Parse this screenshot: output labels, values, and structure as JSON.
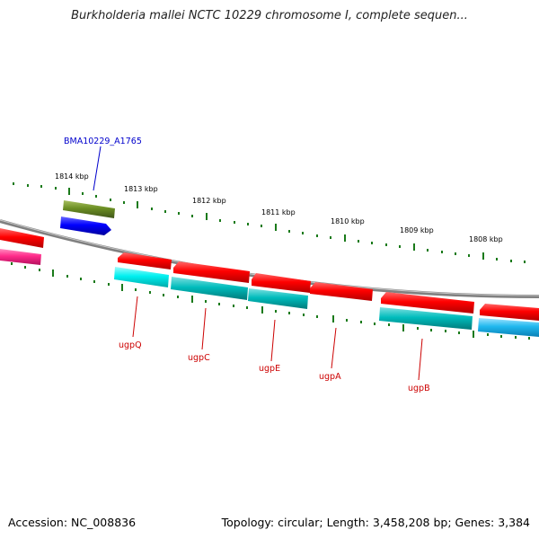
{
  "title": "Burkholderia mallei NCTC 10229 chromosome I, complete sequen...",
  "footer": {
    "accession": "Accession: NC_008836",
    "info": "Topology: circular; Length: 3,458,208 bp; Genes: 3,384"
  },
  "kbp_labels": [
    "1814 kbp",
    "1813 kbp",
    "1812 kbp",
    "1811 kbp",
    "1810 kbp",
    "1809 kbp",
    "1808 kbp"
  ],
  "gene_labels": {
    "top": [
      "BMA10229_A1765"
    ],
    "bottom": [
      "ugpQ",
      "ugpC",
      "ugpE",
      "ugpA",
      "ugpB"
    ]
  },
  "colors": {
    "backbone": "#808080",
    "tick": "#1a7a1a",
    "red_gene": "#ff0000",
    "cyan_gene": "#00e5e5",
    "teal_gene": "#00b3b3",
    "sky_gene": "#1fb8ee",
    "pink_gene": "#ff2a8a",
    "olive_gene": "#6b8e23",
    "blue_gene": "#0000ff",
    "top_label": "#0000cc",
    "bottom_label": "#cc0000"
  }
}
